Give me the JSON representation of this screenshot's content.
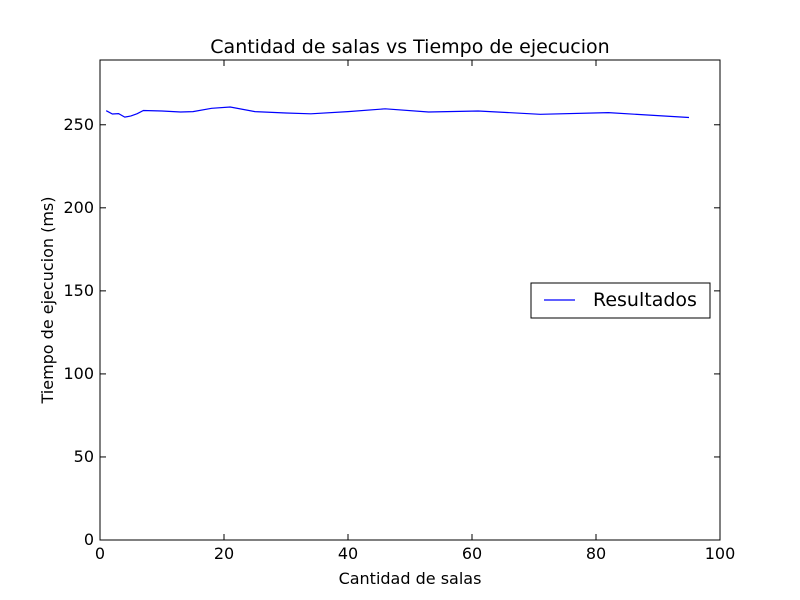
{
  "chart_data": {
    "type": "line",
    "title": "Cantidad de salas vs Tiempo de ejecucion",
    "xlabel": "Cantidad de salas",
    "ylabel": "Tiempo de ejecucion (ms)",
    "xlim": [
      0,
      100
    ],
    "ylim": [
      0,
      289
    ],
    "xticks": [
      0,
      20,
      40,
      60,
      80,
      100
    ],
    "yticks": [
      0,
      50,
      100,
      150,
      200,
      250
    ],
    "grid": false,
    "legend_position": "center-right",
    "series": [
      {
        "name": "Resultados",
        "color": "#0000ff",
        "x": [
          1,
          2,
          3,
          4,
          5,
          6,
          7,
          10,
          13,
          15,
          18,
          21,
          25,
          30,
          34,
          40,
          46,
          53,
          61,
          71,
          82,
          95
        ],
        "y": [
          258.5,
          256.5,
          256.7,
          254.6,
          255.3,
          256.7,
          258.6,
          258.3,
          257.7,
          257.9,
          259.9,
          260.7,
          257.9,
          257.1,
          256.6,
          257.9,
          259.6,
          257.7,
          258.3,
          256.3,
          257.3,
          254.4
        ]
      }
    ]
  }
}
